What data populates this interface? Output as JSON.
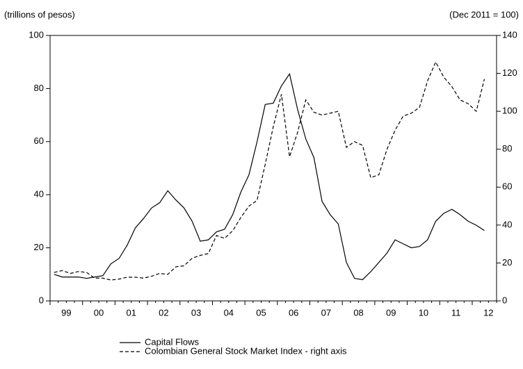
{
  "chart_data": {
    "type": "line",
    "y_label": "(trillions of pesos)",
    "y2_label": "(Dec 2011 = 100)",
    "x": [
      1999.125,
      1999.375,
      1999.625,
      1999.875,
      2000.125,
      2000.375,
      2000.625,
      2000.875,
      2001.125,
      2001.375,
      2001.625,
      2001.875,
      2002.125,
      2002.375,
      2002.625,
      2002.875,
      2003.125,
      2003.375,
      2003.625,
      2003.875,
      2004.125,
      2004.375,
      2004.625,
      2004.875,
      2005.125,
      2005.375,
      2005.625,
      2005.875,
      2006.125,
      2006.375,
      2006.625,
      2006.875,
      2007.125,
      2007.375,
      2007.625,
      2007.875,
      2008.125,
      2008.375,
      2008.625,
      2008.875,
      2009.125,
      2009.375,
      2009.625,
      2009.875,
      2010.125,
      2010.375,
      2010.625,
      2010.875,
      2011.125,
      2011.375,
      2011.625,
      2011.875,
      2012.125,
      2012.375
    ],
    "series": [
      {
        "name": "Capital Flows",
        "color": "#000000",
        "dash": "solid",
        "values": [
          10,
          9,
          9,
          9,
          8.5,
          9,
          9.5,
          14,
          16,
          21,
          27.5,
          31,
          35,
          37,
          41.5,
          38,
          35,
          30,
          22.5,
          23,
          26,
          27,
          32.5,
          41,
          47.5,
          60,
          74,
          74.5,
          81,
          85.5,
          72,
          61,
          54,
          37.5,
          32.5,
          29,
          14.5,
          8.5,
          8,
          11,
          14.5,
          18,
          23,
          21.5,
          20,
          20.5,
          23,
          30,
          33,
          34.5,
          32.5,
          30,
          28.5,
          26.5
        ]
      },
      {
        "name": "Colombian General Stock Market Index - right axis",
        "color": "#000000",
        "dash": "dashed",
        "axis": "y2",
        "values": [
          15,
          16,
          14.5,
          15.5,
          15,
          12,
          12,
          11,
          11.5,
          12.5,
          12.5,
          12,
          13,
          14.5,
          14,
          18,
          18.5,
          22.5,
          24,
          25,
          34.5,
          33,
          37,
          44,
          50,
          53,
          72,
          92,
          109,
          76,
          89,
          106,
          99.5,
          98,
          99,
          100,
          81,
          84,
          82,
          65,
          66.5,
          80,
          90,
          97.5,
          99,
          102,
          116,
          126,
          118,
          113,
          106,
          104,
          100,
          117
        ]
      }
    ],
    "xlim": [
      1999,
      2012.75
    ],
    "xticks": [
      {
        "value": 1999.5,
        "label": "99"
      },
      {
        "value": 2000.5,
        "label": "00"
      },
      {
        "value": 2001.5,
        "label": "01"
      },
      {
        "value": 2002.5,
        "label": "02"
      },
      {
        "value": 2003.5,
        "label": "03"
      },
      {
        "value": 2004.5,
        "label": "04"
      },
      {
        "value": 2005.5,
        "label": "05"
      },
      {
        "value": 2006.5,
        "label": "06"
      },
      {
        "value": 2007.5,
        "label": "07"
      },
      {
        "value": 2008.5,
        "label": "08"
      },
      {
        "value": 2009.5,
        "label": "09"
      },
      {
        "value": 2010.5,
        "label": "10"
      },
      {
        "value": 2011.5,
        "label": "11"
      },
      {
        "value": 2012.5,
        "label": "12"
      }
    ],
    "ylim": [
      0,
      100
    ],
    "yticks": [
      0,
      20,
      40,
      60,
      80,
      100
    ],
    "y2lim": [
      0,
      140
    ],
    "y2ticks": [
      0,
      20,
      40,
      60,
      80,
      100,
      120,
      140
    ],
    "grid": false,
    "legend": "bottom"
  }
}
